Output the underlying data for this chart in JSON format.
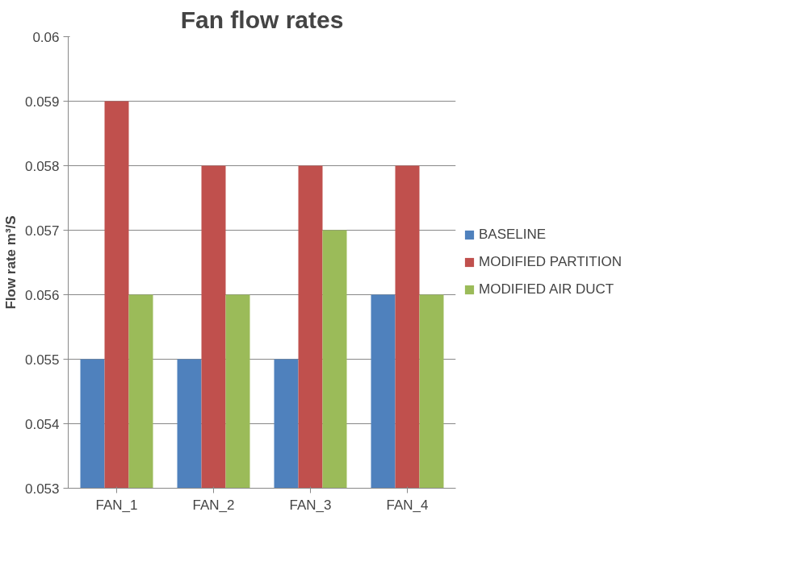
{
  "chart_data": {
    "type": "bar",
    "title": "Fan flow rates",
    "ylabel": "Flow rate m³/S",
    "categories": [
      "FAN_1",
      "FAN_2",
      "FAN_3",
      "FAN_4"
    ],
    "series": [
      {
        "name": "BASELINE",
        "color": "#4f81bd",
        "values": [
          0.055,
          0.055,
          0.055,
          0.056
        ]
      },
      {
        "name": "MODIFIED PARTITION",
        "color": "#c0504d",
        "values": [
          0.059,
          0.058,
          0.058,
          0.058
        ]
      },
      {
        "name": "MODIFIED AIR DUCT",
        "color": "#9bbb59",
        "values": [
          0.056,
          0.056,
          0.057,
          0.056
        ]
      }
    ],
    "ylim": [
      0.053,
      0.06
    ],
    "yticks": [
      0.053,
      0.054,
      0.055,
      0.056,
      0.057,
      0.058,
      0.059,
      0.06
    ],
    "grid": "y",
    "legend": "right"
  }
}
